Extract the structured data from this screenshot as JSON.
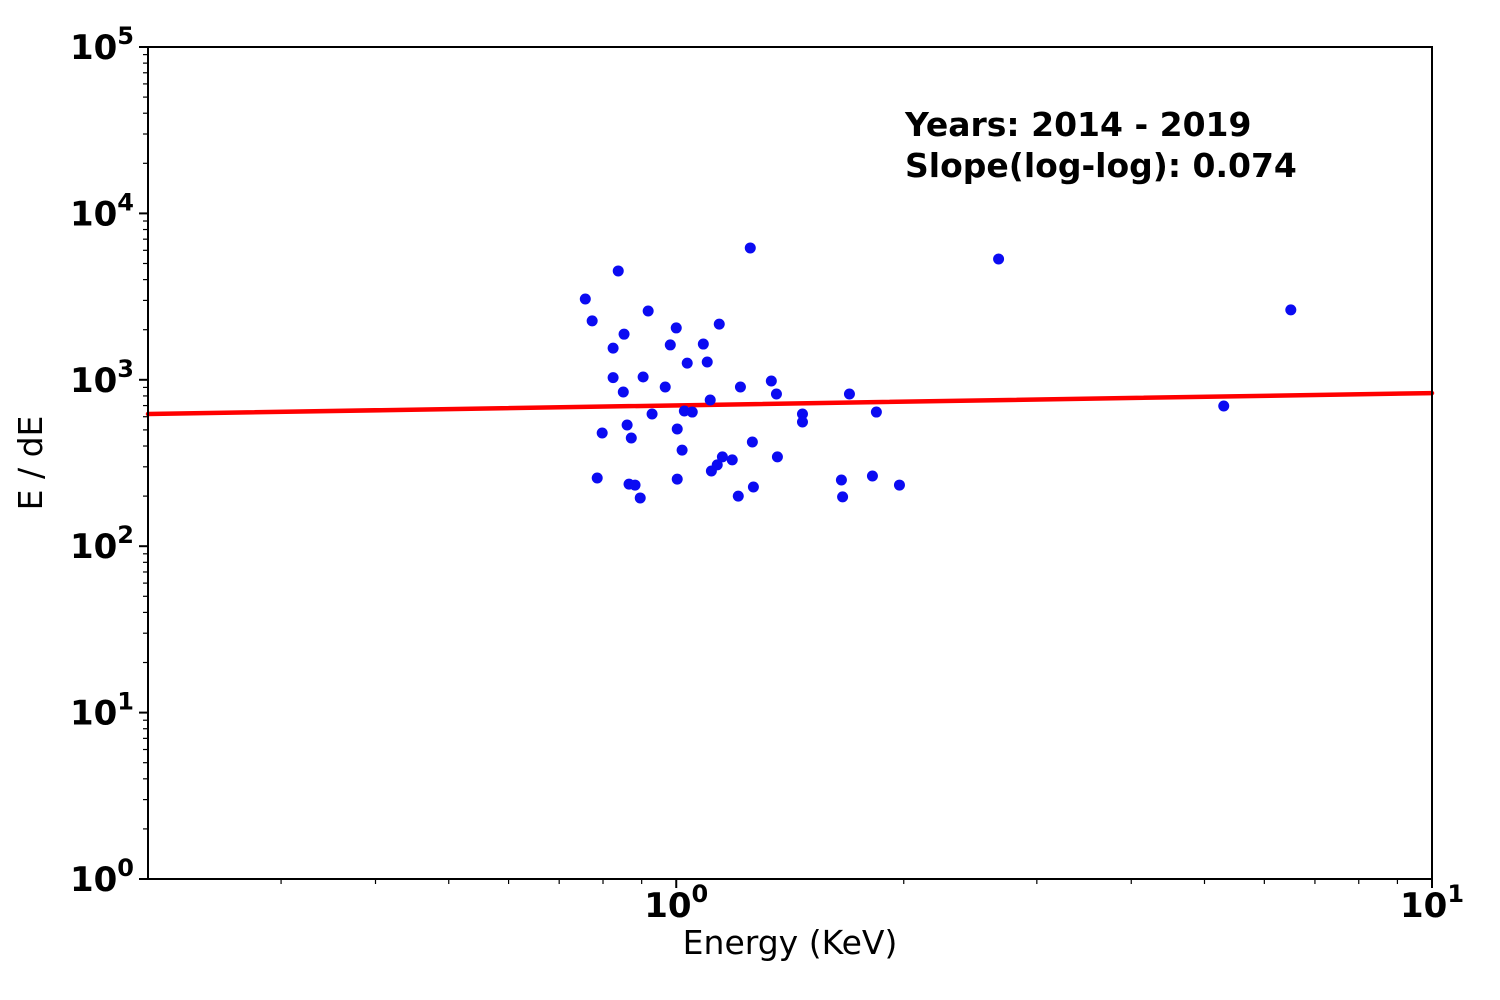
{
  "chart_data": {
    "type": "scatter",
    "title": "",
    "xlabel": "Energy (KeV)",
    "ylabel": "E / dE",
    "x_scale": "log",
    "y_scale": "log",
    "xlim": [
      0.2,
      10
    ],
    "ylim": [
      1,
      100000
    ],
    "grid": false,
    "legend": "none",
    "annotation": [
      "Years: 2014 - 2019",
      "Slope(log-log): 0.074"
    ],
    "years": "2014 - 2019",
    "slope_loglog": 0.074,
    "x_ticks": [
      {
        "value": 1,
        "base": "10",
        "exp": "0"
      },
      {
        "value": 10,
        "base": "10",
        "exp": "1"
      }
    ],
    "y_ticks": [
      {
        "value": 1,
        "base": "10",
        "exp": "0"
      },
      {
        "value": 10,
        "base": "10",
        "exp": "1"
      },
      {
        "value": 100,
        "base": "10",
        "exp": "2"
      },
      {
        "value": 1000,
        "base": "10",
        "exp": "3"
      },
      {
        "value": 10000,
        "base": "10",
        "exp": "4"
      },
      {
        "value": 100000,
        "base": "10",
        "exp": "5"
      }
    ],
    "series": [
      {
        "name": "energy-resolution-points",
        "type": "scatter",
        "color": "#0b0bf2",
        "points": [
          [
            0.838,
            4510
          ],
          [
            0.758,
            3060
          ],
          [
            0.918,
            2590
          ],
          [
            0.774,
            2260
          ],
          [
            0.853,
            1880
          ],
          [
            1.0,
            2050
          ],
          [
            1.14,
            2160
          ],
          [
            0.982,
            1620
          ],
          [
            1.086,
            1640
          ],
          [
            0.825,
            1550
          ],
          [
            1.034,
            1260
          ],
          [
            1.099,
            1280
          ],
          [
            1.253,
            6200
          ],
          [
            0.825,
            1030
          ],
          [
            0.904,
            1040
          ],
          [
            0.851,
            845
          ],
          [
            0.967,
            905
          ],
          [
            1.109,
            756
          ],
          [
            0.929,
            623
          ],
          [
            1.025,
            649
          ],
          [
            1.05,
            640
          ],
          [
            0.861,
            535
          ],
          [
            0.798,
            479
          ],
          [
            0.872,
            447
          ],
          [
            1.003,
            506
          ],
          [
            1.018,
            378
          ],
          [
            1.151,
            344
          ],
          [
            1.186,
            330
          ],
          [
            1.113,
            283
          ],
          [
            1.133,
            308
          ],
          [
            0.786,
            257
          ],
          [
            1.003,
            253
          ],
          [
            0.866,
            236
          ],
          [
            0.882,
            233
          ],
          [
            0.896,
            195
          ],
          [
            1.216,
            905
          ],
          [
            1.336,
            983
          ],
          [
            1.357,
            822
          ],
          [
            1.695,
            822
          ],
          [
            1.469,
            623
          ],
          [
            1.469,
            558
          ],
          [
            1.84,
            640
          ],
          [
            1.261,
            423
          ],
          [
            1.361,
            344
          ],
          [
            1.265,
            227
          ],
          [
            1.208,
            200
          ],
          [
            1.654,
            250
          ],
          [
            1.66,
            198
          ],
          [
            1.818,
            264
          ],
          [
            1.974,
            233
          ],
          [
            2.67,
            5320
          ],
          [
            5.302,
            696
          ],
          [
            6.504,
            2630
          ]
        ]
      },
      {
        "name": "loglog-fit-line",
        "type": "line",
        "color": "#ff0000",
        "points": [
          [
            0.2,
            623
          ],
          [
            10,
            832
          ]
        ]
      }
    ]
  }
}
